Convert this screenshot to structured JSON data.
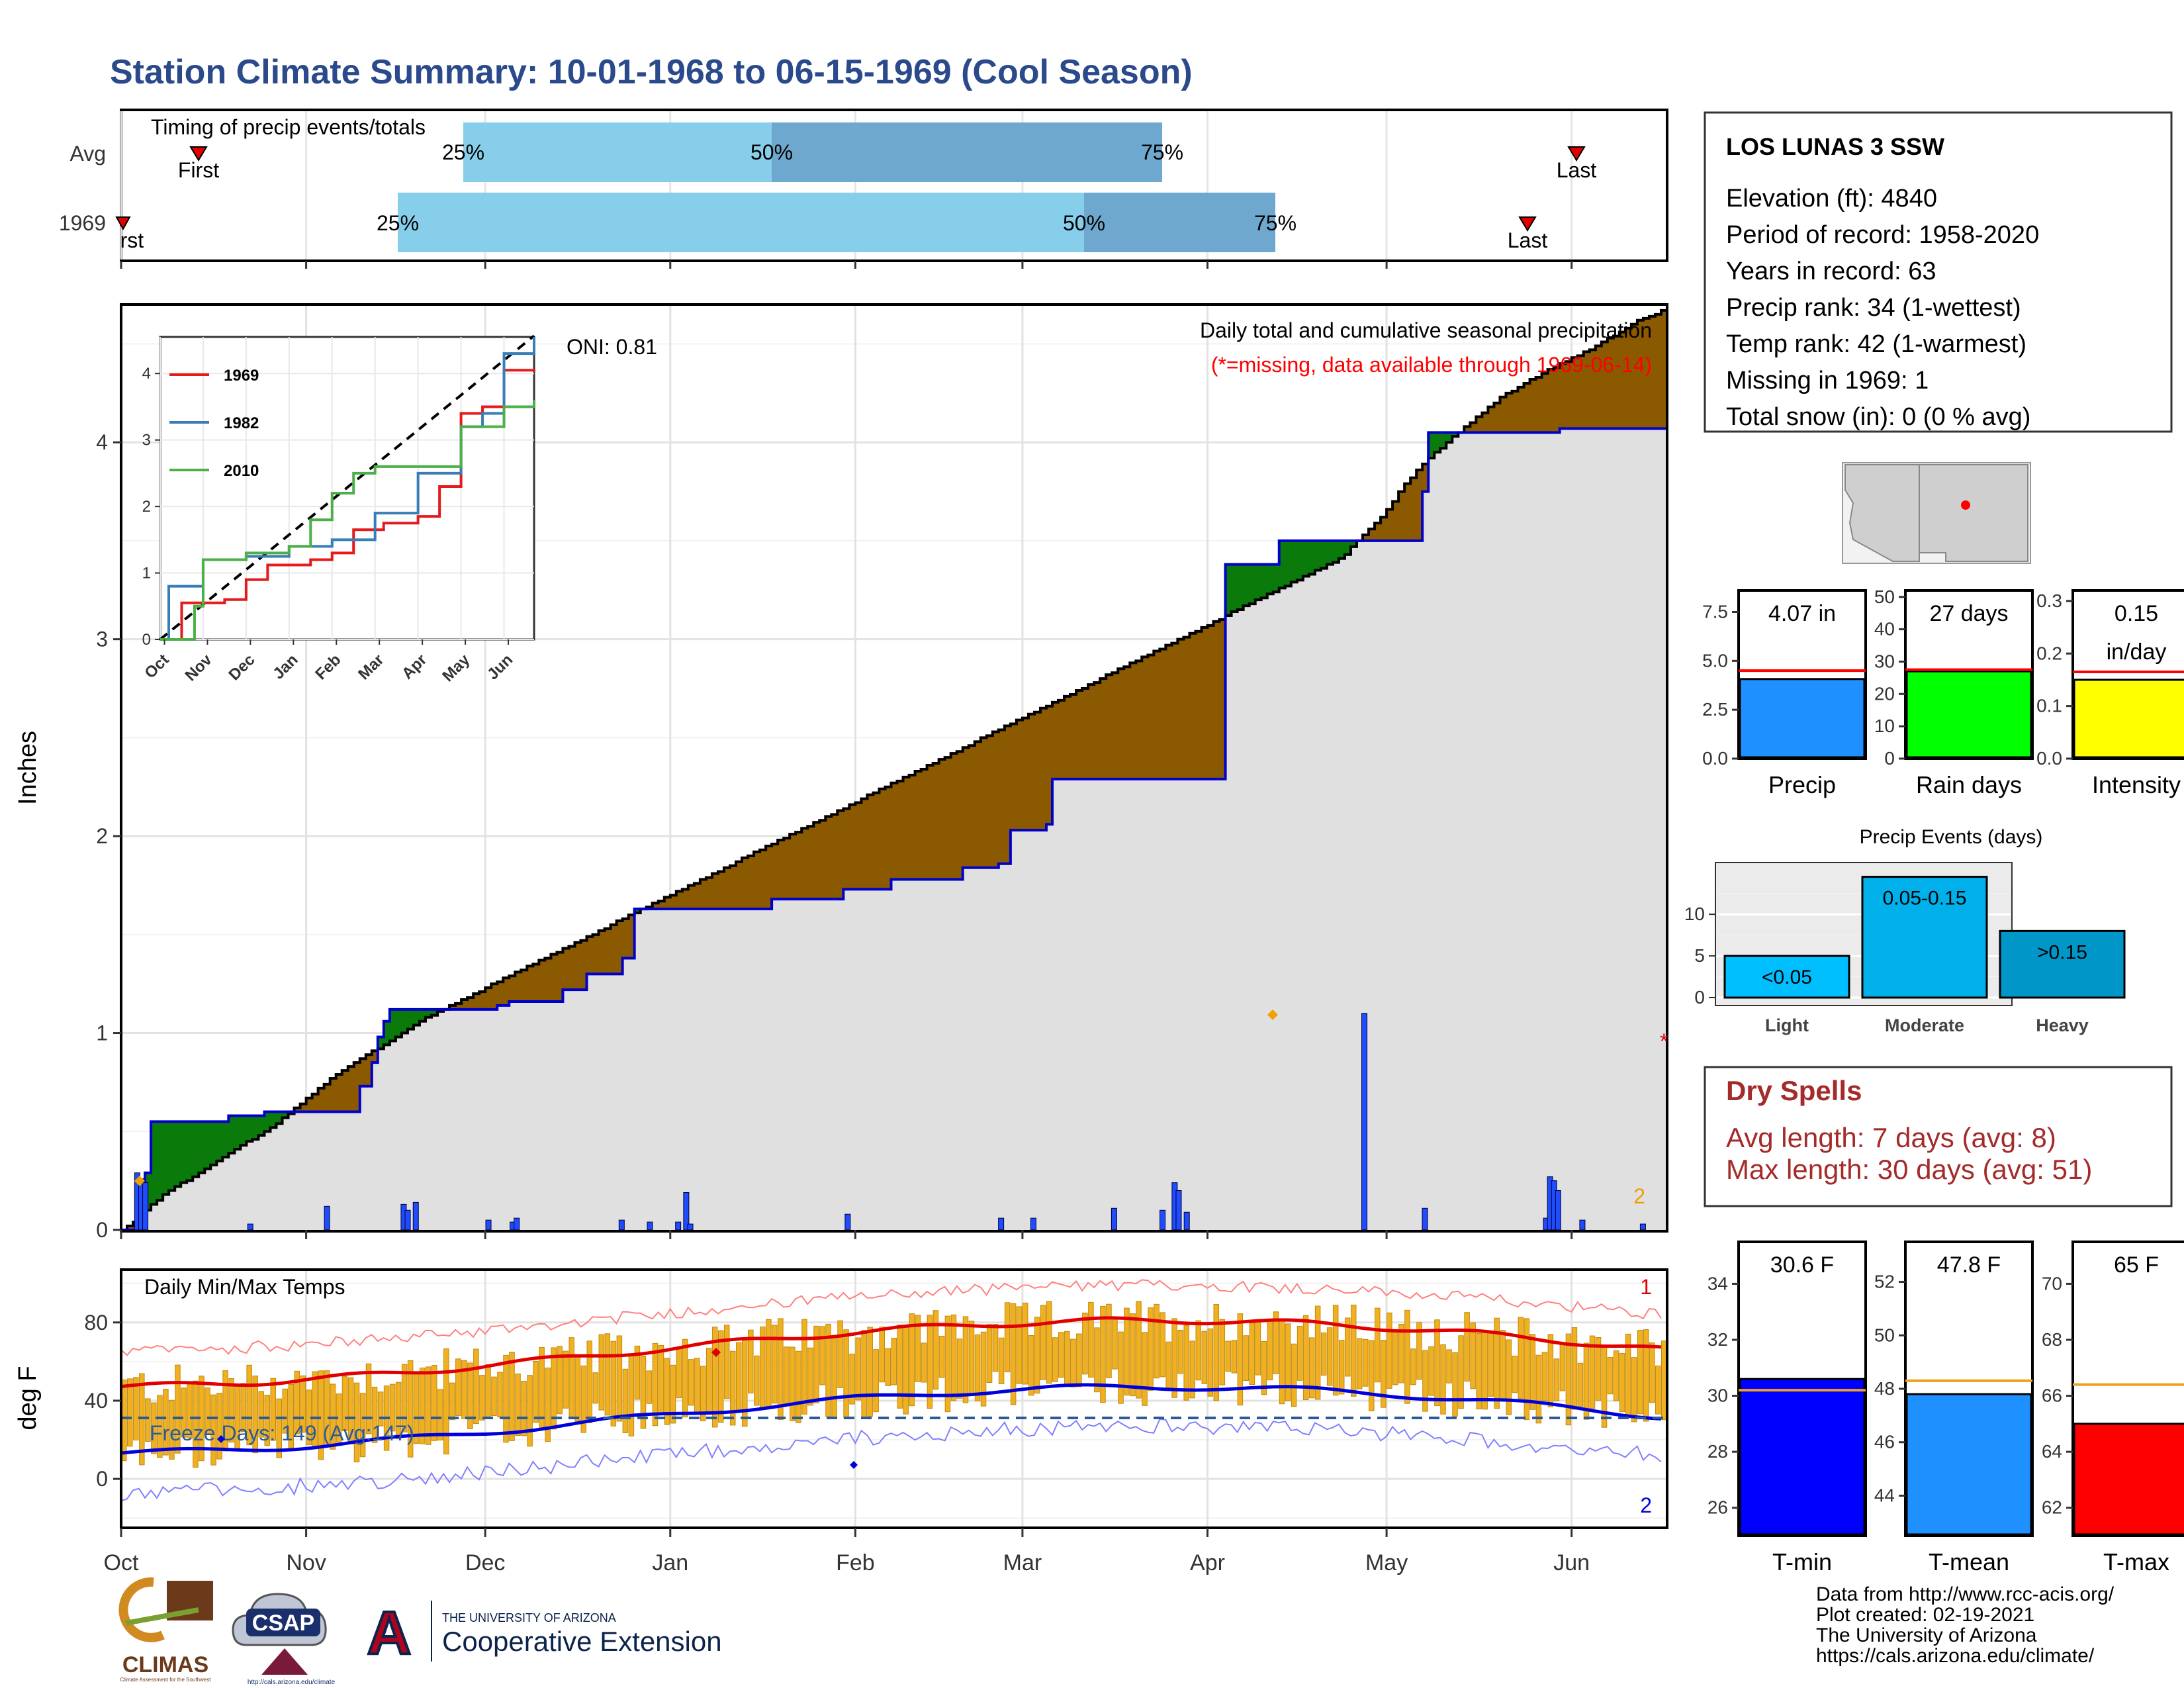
{
  "page_title": "Station Climate Summary: 10-01-1968 to 06-15-1969 (Cool Season)",
  "colors": {
    "title": "#2a4a8c",
    "precip_bar": "#1f4cff",
    "cum_above": "#8b5a00",
    "cum_below": "#0a7a0a",
    "avg_fill": "#e0e0e0",
    "temp_bar": "#f0b020",
    "tmax_line": "#e00000",
    "tmin_line": "#0000dd",
    "timing_light": "#87ceeb",
    "timing_dark": "#6fa8cf",
    "dry_spell_text": "#a52a2a"
  },
  "timing_panel": {
    "title": "Timing of precip events/totals",
    "rows": [
      {
        "label": "Avg",
        "first_label": "First",
        "last_label": "Last",
        "q25": "25%",
        "q50": "50%",
        "q75": "75%"
      },
      {
        "label": "1969",
        "first_label": "First",
        "last_label": "Last",
        "q25": "25%",
        "q50": "50%",
        "q75": "75%"
      }
    ]
  },
  "precip_panel": {
    "ylabel": "Inches",
    "yticks": [
      "0",
      "1",
      "2",
      "3",
      "4"
    ],
    "header_line1": "Daily total and cumulative seasonal precipitation",
    "header_line2": "(*=missing, data available through 1969-06-14)",
    "oni": "ONI: 0.81",
    "missing_marker": "*",
    "missing_count": "2"
  },
  "inset": {
    "yticks": [
      "0",
      "1",
      "2",
      "3",
      "4"
    ],
    "xticks": [
      "Oct",
      "Nov",
      "Dec",
      "Jan",
      "Feb",
      "Mar",
      "Apr",
      "May",
      "Jun"
    ],
    "legend": [
      {
        "name": "1969",
        "color": "#e41a1c"
      },
      {
        "name": "1982",
        "color": "#377eb8"
      },
      {
        "name": "2010",
        "color": "#4daf4a"
      }
    ]
  },
  "temp_panel": {
    "ylabel": "deg F",
    "yticks": [
      "0",
      "40",
      "80"
    ],
    "title": "Daily Min/Max Temps",
    "freeze_label": "Freeze Days: 149 (Avg:147)",
    "top_count": "1",
    "bottom_count": "2"
  },
  "x_months": [
    "Oct",
    "Nov",
    "Dec",
    "Jan",
    "Feb",
    "Mar",
    "Apr",
    "May",
    "Jun"
  ],
  "station": {
    "name": "LOS LUNAS 3 SSW",
    "lines": [
      "Elevation (ft): 4840",
      "Period of record: 1958-2020",
      "Years in record: 63",
      "Precip rank: 34 (1-wettest)",
      "Temp rank: 42 (1-warmest)",
      "Missing in 1969: 1",
      "Total snow (in): 0 (0 % avg)"
    ]
  },
  "gauges_precip": [
    {
      "label": "Precip",
      "value_text": "4.07 in",
      "value": 4.07,
      "avg": 4.5,
      "max": 8.6,
      "ticks": [
        "0.0",
        "2.5",
        "5.0",
        "7.5"
      ],
      "tickvals": [
        0,
        2.5,
        5.0,
        7.5
      ],
      "color": "#1e90ff"
    },
    {
      "label": "Rain days",
      "value_text": "27 days",
      "value": 27,
      "avg": 27.5,
      "max": 52,
      "ticks": [
        "0",
        "10",
        "20",
        "30",
        "40",
        "50"
      ],
      "tickvals": [
        0,
        10,
        20,
        30,
        40,
        50
      ],
      "color": "#00ff00"
    },
    {
      "label": "Intensity",
      "value_text": "0.15",
      "value_text2": "in/day",
      "value": 0.15,
      "avg": 0.165,
      "max": 0.32,
      "ticks": [
        "0.0",
        "0.1",
        "0.2",
        "0.3"
      ],
      "tickvals": [
        0,
        0.1,
        0.2,
        0.3
      ],
      "color": "#ffff00"
    }
  ],
  "precip_events": {
    "title": "Precip Events (days)",
    "yticks": [
      "0",
      "5",
      "10"
    ],
    "bars": [
      {
        "category": "Light",
        "label": "<0.05",
        "value": 5,
        "color": "#00bfff"
      },
      {
        "category": "Moderate",
        "label": "0.05-0.15",
        "value": 14.5,
        "color": "#00b0ea"
      },
      {
        "category": "Heavy",
        "label": ">0.15",
        "value": 8,
        "color": "#0096c8"
      }
    ]
  },
  "dry_spells": {
    "title": "Dry Spells",
    "avg_line": "Avg length: 7 days (avg: 8)",
    "max_line": "Max length: 30 days (avg: 51)"
  },
  "gauges_temp": [
    {
      "label": "T-min",
      "value_text": "30.6 F",
      "value": 30.6,
      "avg": 30.2,
      "min": 25,
      "max": 35.5,
      "ticks": [
        "26",
        "28",
        "30",
        "32",
        "34"
      ],
      "tickvals": [
        26,
        28,
        30,
        32,
        34
      ],
      "color": "#0000ff"
    },
    {
      "label": "T-mean",
      "value_text": "47.8 F",
      "value": 47.8,
      "avg": 48.3,
      "min": 42.5,
      "max": 53.5,
      "ticks": [
        "44",
        "46",
        "48",
        "50",
        "52"
      ],
      "tickvals": [
        44,
        46,
        48,
        50,
        52
      ],
      "color": "#1e90ff"
    },
    {
      "label": "T-max",
      "value_text": "65 F",
      "value": 65,
      "avg": 66.4,
      "min": 61,
      "max": 71.5,
      "ticks": [
        "62",
        "64",
        "66",
        "68",
        "70"
      ],
      "tickvals": [
        62,
        64,
        66,
        68,
        70
      ],
      "color": "#ff0000"
    }
  ],
  "footer": {
    "credits": [
      "Data from http://www.rcc-acis.org/",
      "Plot created: 02-19-2021",
      "The University of Arizona",
      "https://cals.arizona.edu/climate/"
    ],
    "logo_climas": "CLIMAS",
    "logo_climas_sub": "Climate Assessment for the Southwest",
    "logo_csap": "CSAP",
    "logo_csap_url": "http://cals.arizona.edu/climate",
    "logo_ua_letter": "A",
    "ua_small": "THE UNIVERSITY OF ARIZONA",
    "ua_big": "Cooperative Extension"
  },
  "chart_data": [
    {
      "type": "bar",
      "name": "timing",
      "title": "Timing of precip events/totals",
      "categories": [
        "Avg",
        "1969"
      ],
      "series": [
        {
          "name": "First",
          "values": [
            "1968-10-26",
            "1968-10-01"
          ]
        },
        {
          "name": "25%",
          "values": [
            "1968-11-25",
            "1968-11-14"
          ]
        },
        {
          "name": "50%",
          "values": [
            "1969-01-18",
            "1969-03-11"
          ]
        },
        {
          "name": "75%",
          "values": [
            "1969-03-31",
            "1969-04-11"
          ]
        },
        {
          "name": "Last",
          "values": [
            "1969-06-15",
            "1969-06-07"
          ]
        }
      ]
    },
    {
      "type": "area",
      "name": "daily_and_cumulative_precipitation",
      "title": "Daily total and cumulative seasonal precipitation",
      "ylabel": "Inches",
      "ylim": [
        0,
        4.7
      ],
      "avg_cumulative": [
        [
          0,
          0
        ],
        [
          2,
          0.03
        ],
        [
          5,
          0.1
        ],
        [
          9,
          0.18
        ],
        [
          13,
          0.24
        ],
        [
          17,
          0.3
        ],
        [
          21,
          0.36
        ],
        [
          25,
          0.42
        ],
        [
          29,
          0.48
        ],
        [
          33,
          0.54
        ],
        [
          37,
          0.62
        ],
        [
          41,
          0.7
        ],
        [
          45,
          0.78
        ],
        [
          49,
          0.84
        ],
        [
          53,
          0.9
        ],
        [
          57,
          0.96
        ],
        [
          61,
          1.02
        ],
        [
          65,
          1.08
        ],
        [
          70,
          1.14
        ],
        [
          75,
          1.2
        ],
        [
          80,
          1.26
        ],
        [
          85,
          1.32
        ],
        [
          90,
          1.38
        ],
        [
          95,
          1.44
        ],
        [
          100,
          1.5
        ],
        [
          105,
          1.56
        ],
        [
          110,
          1.62
        ],
        [
          115,
          1.68
        ],
        [
          120,
          1.74
        ],
        [
          125,
          1.8
        ],
        [
          130,
          1.86
        ],
        [
          135,
          1.92
        ],
        [
          140,
          1.98
        ],
        [
          145,
          2.04
        ],
        [
          150,
          2.1
        ],
        [
          155,
          2.16
        ],
        [
          160,
          2.22
        ],
        [
          165,
          2.28
        ],
        [
          170,
          2.34
        ],
        [
          175,
          2.4
        ],
        [
          180,
          2.46
        ],
        [
          185,
          2.52
        ],
        [
          190,
          2.58
        ],
        [
          195,
          2.64
        ],
        [
          200,
          2.7
        ],
        [
          205,
          2.76
        ],
        [
          210,
          2.82
        ],
        [
          215,
          2.88
        ],
        [
          220,
          2.94
        ],
        [
          225,
          3.0
        ],
        [
          230,
          3.06
        ],
        [
          235,
          3.12
        ],
        [
          240,
          3.18
        ],
        [
          245,
          3.24
        ],
        [
          250,
          3.3
        ],
        [
          255,
          3.36
        ],
        [
          260,
          3.42
        ],
        [
          262,
          3.48
        ],
        [
          265,
          3.55
        ],
        [
          268,
          3.62
        ],
        [
          270,
          3.68
        ],
        [
          272,
          3.76
        ],
        [
          275,
          3.84
        ],
        [
          278,
          3.92
        ],
        [
          281,
          3.98
        ],
        [
          284,
          4.04
        ],
        [
          287,
          4.1
        ],
        [
          290,
          4.16
        ],
        [
          293,
          4.22
        ],
        [
          297,
          4.28
        ],
        [
          300,
          4.32
        ],
        [
          303,
          4.36
        ],
        [
          306,
          4.4
        ],
        [
          310,
          4.44
        ],
        [
          313,
          4.48
        ],
        [
          318,
          4.55
        ],
        [
          323,
          4.62
        ],
        [
          329,
          4.68
        ]
      ],
      "cumulative_1969": [
        [
          0,
          0
        ],
        [
          3,
          0.04
        ],
        [
          4,
          0.29
        ],
        [
          6,
          0.55
        ],
        [
          18,
          0.55
        ],
        [
          22,
          0.58
        ],
        [
          30,
          0.6
        ],
        [
          46,
          0.6
        ],
        [
          50,
          0.73
        ],
        [
          53,
          0.85
        ],
        [
          54,
          0.98
        ],
        [
          55,
          1.06
        ],
        [
          56,
          1.12
        ],
        [
          75,
          1.12
        ],
        [
          80,
          1.14
        ],
        [
          82,
          1.16
        ],
        [
          90,
          1.16
        ],
        [
          94,
          1.22
        ],
        [
          98,
          1.3
        ],
        [
          102,
          1.3
        ],
        [
          106,
          1.38
        ],
        [
          108,
          1.43
        ],
        [
          109,
          1.63
        ],
        [
          135,
          1.63
        ],
        [
          138,
          1.68
        ],
        [
          150,
          1.68
        ],
        [
          153,
          1.73
        ],
        [
          160,
          1.73
        ],
        [
          163,
          1.78
        ],
        [
          175,
          1.78
        ],
        [
          178,
          1.84
        ],
        [
          182,
          1.84
        ],
        [
          186,
          1.86
        ],
        [
          189,
          2.03
        ],
        [
          196,
          2.06
        ],
        [
          197,
          2.29
        ],
        [
          233,
          2.29
        ],
        [
          234,
          3.38
        ],
        [
          245,
          3.38
        ],
        [
          246,
          3.5
        ],
        [
          275,
          3.5
        ],
        [
          276,
          3.75
        ],
        [
          277,
          3.95
        ],
        [
          278,
          4.05
        ],
        [
          306,
          4.07
        ],
        [
          329,
          4.07
        ]
      ],
      "daily_1969": [
        [
          4,
          0.29
        ],
        [
          5,
          0.26
        ],
        [
          6,
          0.24
        ],
        [
          32,
          0.03
        ],
        [
          51,
          0.12
        ],
        [
          70,
          0.13
        ],
        [
          71,
          0.1
        ],
        [
          73,
          0.14
        ],
        [
          91,
          0.05
        ],
        [
          97,
          0.04
        ],
        [
          98,
          0.06
        ],
        [
          124,
          0.05
        ],
        [
          131,
          0.04
        ],
        [
          138,
          0.04
        ],
        [
          140,
          0.19
        ],
        [
          141,
          0.03
        ],
        [
          180,
          0.08
        ],
        [
          218,
          0.06
        ],
        [
          226,
          0.06
        ],
        [
          246,
          0.11
        ],
        [
          258,
          0.1
        ],
        [
          261,
          0.24
        ],
        [
          262,
          0.2
        ],
        [
          264,
          0.09
        ],
        [
          308,
          1.1
        ],
        [
          323,
          0.11
        ],
        [
          353,
          0.06
        ],
        [
          354,
          0.27
        ],
        [
          355,
          0.25
        ],
        [
          356,
          0.2
        ],
        [
          362,
          0.05
        ],
        [
          377,
          0.03
        ]
      ],
      "daily_note": "day index from 1968-10-01"
    },
    {
      "type": "line",
      "name": "cumulative_analog_years",
      "series": [
        {
          "name": "1969",
          "values": [
            [
              0,
              0
            ],
            [
              0.5,
              0.55
            ],
            [
              1.5,
              0.6
            ],
            [
              2,
              0.9
            ],
            [
              2.5,
              1.12
            ],
            [
              3.5,
              1.2
            ],
            [
              4,
              1.3
            ],
            [
              4.5,
              1.65
            ],
            [
              5.2,
              1.75
            ],
            [
              6,
              1.85
            ],
            [
              6.5,
              2.3
            ],
            [
              7,
              3.4
            ],
            [
              7.5,
              3.5
            ],
            [
              8,
              4.05
            ],
            [
              8.7,
              4.07
            ]
          ]
        },
        {
          "name": "1982",
          "values": [
            [
              0,
              0
            ],
            [
              0.2,
              0.8
            ],
            [
              0.8,
              0.8
            ],
            [
              1,
              1.2
            ],
            [
              2,
              1.25
            ],
            [
              3,
              1.4
            ],
            [
              4,
              1.5
            ],
            [
              5,
              1.9
            ],
            [
              6,
              2.5
            ],
            [
              7,
              3.2
            ],
            [
              7.5,
              3.4
            ],
            [
              8,
              4.3
            ],
            [
              8.7,
              4.7
            ]
          ]
        },
        {
          "name": "2010",
          "values": [
            [
              0,
              0
            ],
            [
              0.8,
              0.5
            ],
            [
              1,
              1.2
            ],
            [
              2,
              1.3
            ],
            [
              3,
              1.4
            ],
            [
              3.5,
              1.8
            ],
            [
              4,
              2.2
            ],
            [
              4.5,
              2.5
            ],
            [
              5,
              2.6
            ],
            [
              6,
              2.6
            ],
            [
              7,
              3.2
            ],
            [
              8,
              3.5
            ],
            [
              8.7,
              3.6
            ]
          ]
        }
      ]
    },
    {
      "type": "bar",
      "name": "daily_min_max_temps",
      "title": "Daily Min/Max Temps",
      "ylabel": "deg F",
      "ylim": [
        -25,
        107
      ],
      "freeze_line": 32
    },
    {
      "type": "bar",
      "name": "season_gauges",
      "categories": [
        "Precip",
        "Rain days",
        "Intensity",
        "T-min",
        "T-mean",
        "T-max"
      ],
      "values": [
        4.07,
        27,
        0.15,
        30.6,
        47.8,
        65
      ]
    },
    {
      "type": "bar",
      "name": "precip_events",
      "title": "Precip Events (days)",
      "categories": [
        "Light",
        "Moderate",
        "Heavy"
      ],
      "values": [
        5,
        14.5,
        8
      ]
    }
  ]
}
